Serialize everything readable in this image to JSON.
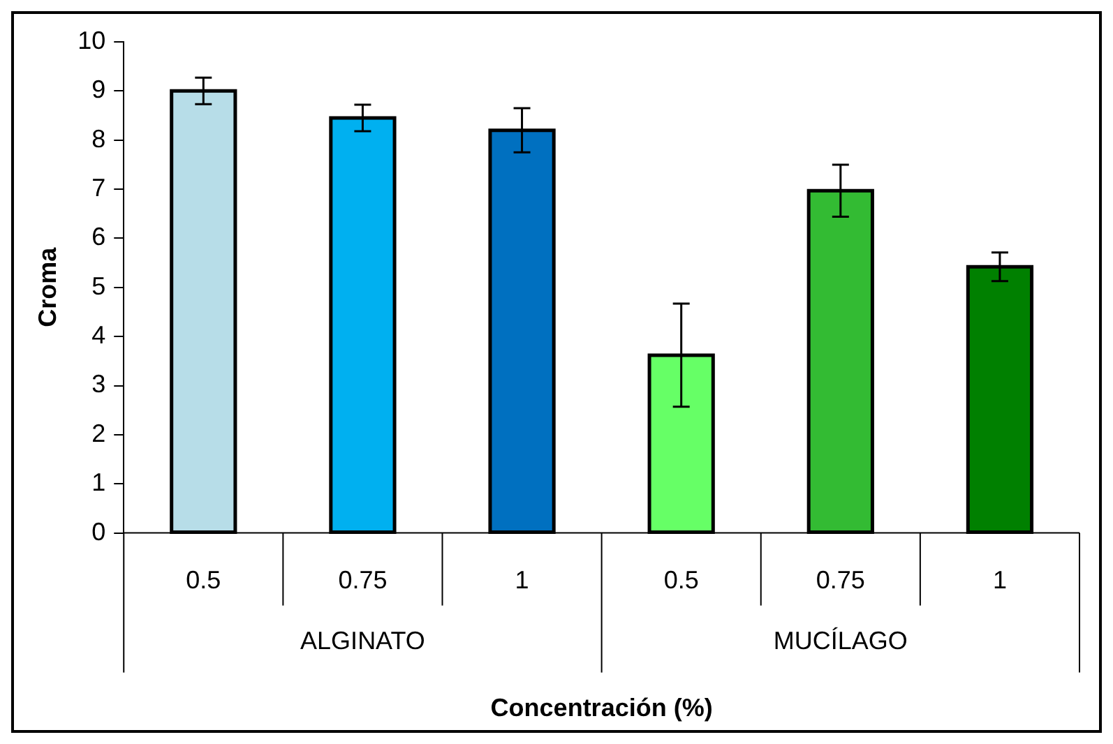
{
  "chart_data": {
    "type": "bar",
    "xlabel": "Concentración (%)",
    "ylabel": "Croma",
    "categories": [
      "0.5",
      "0.75",
      "1",
      "0.5",
      "0.75",
      "1"
    ],
    "values": [
      9.0,
      8.45,
      8.2,
      3.62,
      6.97,
      5.42
    ],
    "errors": [
      0.27,
      0.27,
      0.45,
      1.05,
      0.53,
      0.29
    ],
    "colors": [
      "#b7dde8",
      "#00b0f0",
      "#0070c0",
      "#66ff66",
      "#33bb33",
      "#008000"
    ],
    "annotations": [
      "ALGINATO",
      "MUCÍLAGO"
    ],
    "ylim": [
      0,
      10
    ],
    "yticks": [
      0,
      1,
      2,
      3,
      4,
      5,
      6,
      7,
      8,
      9,
      10
    ],
    "grid": false,
    "legend": false
  }
}
